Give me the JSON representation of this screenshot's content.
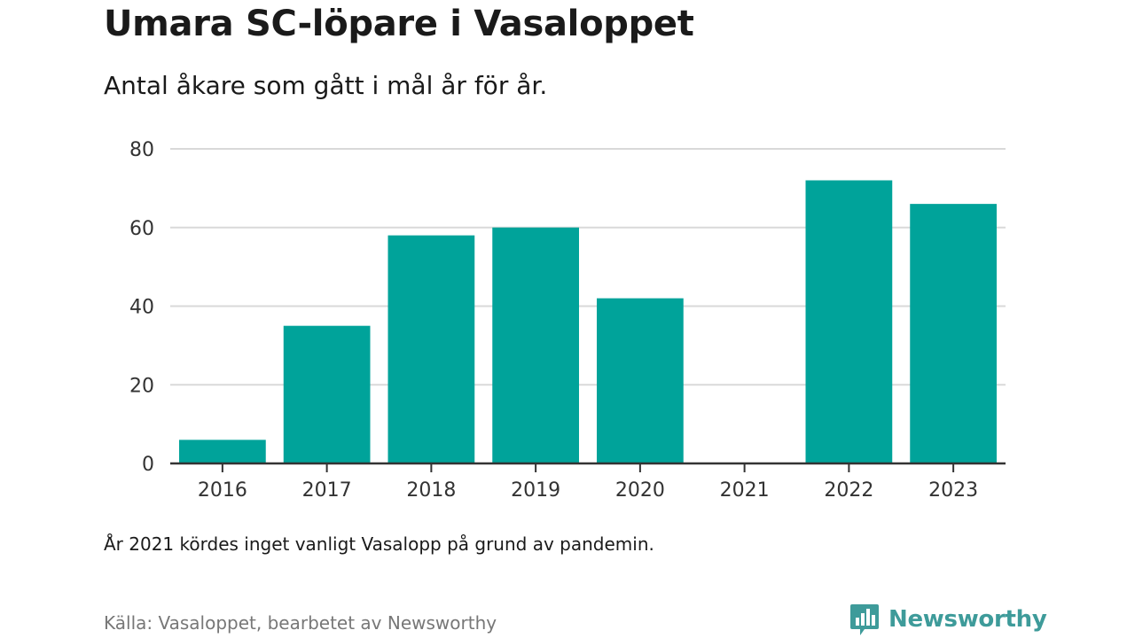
{
  "title": "Umara SC-löpare i Vasaloppet",
  "subtitle": "Antal åkare som gått i mål år för år.",
  "note": "År 2021 kördes inget vanligt Vasalopp på grund av pandemin.",
  "source": "Källa: Vasaloppet, bearbetet av Newsworthy",
  "logo": {
    "text": "Newsworthy",
    "icon": "newsworthy-logo-icon",
    "color": "#3e9b9a"
  },
  "colors": {
    "bar": "#00a39a",
    "grid": "#d9d9d9",
    "axis": "#333333"
  },
  "chart_data": {
    "type": "bar",
    "categories": [
      "2016",
      "2017",
      "2018",
      "2019",
      "2020",
      "2021",
      "2022",
      "2023"
    ],
    "values": [
      6,
      35,
      58,
      60,
      42,
      0,
      72,
      66
    ],
    "ylim": [
      0,
      80
    ],
    "yticks": [
      0,
      20,
      40,
      60,
      80
    ],
    "xlabel": "",
    "ylabel": "",
    "grid": true,
    "legend": "none"
  }
}
